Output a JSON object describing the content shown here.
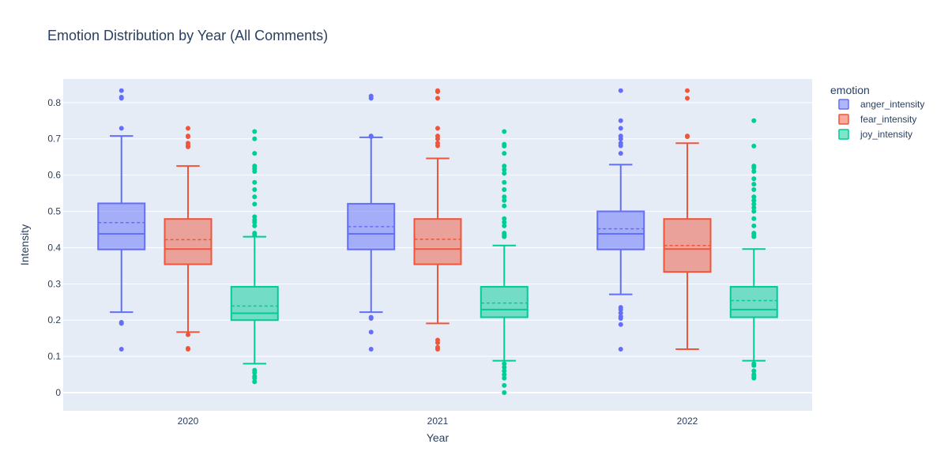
{
  "chart_data": {
    "type": "box",
    "title": "Emotion Distribution by Year (All Comments)",
    "xlabel": "Year",
    "ylabel": "Intensity",
    "ylim": [
      -0.05,
      0.865
    ],
    "yticks": [
      0,
      0.1,
      0.2,
      0.3,
      0.4,
      0.5,
      0.6,
      0.7,
      0.8
    ],
    "categories": [
      "2020",
      "2021",
      "2022"
    ],
    "legend_title": "emotion",
    "legend_position": "top-right, outside plot",
    "grid": true,
    "show_mean": true,
    "series": [
      {
        "name": "anger_intensity",
        "color": "#636efa",
        "boxes": [
          {
            "q1": 0.395,
            "median": 0.438,
            "q3": 0.522,
            "mean": 0.469,
            "lower": 0.222,
            "upper": 0.708,
            "outliers": [
              0.833,
              0.815,
              0.812,
              0.729,
              0.194,
              0.191,
              0.12
            ]
          },
          {
            "q1": 0.395,
            "median": 0.438,
            "q3": 0.521,
            "mean": 0.458,
            "lower": 0.222,
            "upper": 0.704,
            "outliers": [
              0.818,
              0.812,
              0.708,
              0.706,
              0.208,
              0.205,
              0.167,
              0.12
            ]
          },
          {
            "q1": 0.395,
            "median": 0.438,
            "q3": 0.5,
            "mean": 0.452,
            "lower": 0.271,
            "upper": 0.629,
            "outliers": [
              0.833,
              0.75,
              0.729,
              0.708,
              0.7,
              0.688,
              0.681,
              0.66,
              0.235,
              0.229,
              0.22,
              0.21,
              0.205,
              0.188,
              0.12
            ]
          }
        ]
      },
      {
        "name": "fear_intensity",
        "color": "#ef553b",
        "boxes": [
          {
            "q1": 0.354,
            "median": 0.396,
            "q3": 0.479,
            "mean": 0.422,
            "lower": 0.167,
            "upper": 0.625,
            "outliers": [
              0.729,
              0.708,
              0.706,
              0.688,
              0.681,
              0.678,
              0.16,
              0.122,
              0.12
            ]
          },
          {
            "q1": 0.354,
            "median": 0.396,
            "q3": 0.479,
            "mean": 0.423,
            "lower": 0.191,
            "upper": 0.646,
            "outliers": [
              0.833,
              0.83,
              0.812,
              0.729,
              0.708,
              0.7,
              0.688,
              0.681,
              0.145,
              0.138,
              0.125,
              0.12
            ]
          },
          {
            "q1": 0.333,
            "median": 0.396,
            "q3": 0.479,
            "mean": 0.406,
            "lower": 0.12,
            "upper": 0.688,
            "outliers": [
              0.833,
              0.812,
              0.708,
              0.706
            ]
          }
        ]
      },
      {
        "name": "joy_intensity",
        "color": "#00cc96",
        "boxes": [
          {
            "q1": 0.2,
            "median": 0.219,
            "q3": 0.292,
            "mean": 0.239,
            "lower": 0.08,
            "upper": 0.43,
            "outliers": [
              0.72,
              0.7,
              0.66,
              0.625,
              0.618,
              0.61,
              0.58,
              0.56,
              0.54,
              0.52,
              0.485,
              0.476,
              0.47,
              0.46,
              0.44,
              0.435,
              0.062,
              0.055,
              0.045,
              0.04,
              0.03
            ]
          },
          {
            "q1": 0.208,
            "median": 0.229,
            "q3": 0.292,
            "mean": 0.247,
            "lower": 0.088,
            "upper": 0.406,
            "outliers": [
              0.72,
              0.685,
              0.68,
              0.66,
              0.625,
              0.615,
              0.605,
              0.58,
              0.56,
              0.54,
              0.53,
              0.515,
              0.48,
              0.47,
              0.46,
              0.44,
              0.435,
              0.43,
              0.08,
              0.07,
              0.06,
              0.05,
              0.04,
              0.02,
              0.0
            ]
          },
          {
            "q1": 0.208,
            "median": 0.229,
            "q3": 0.292,
            "mean": 0.254,
            "lower": 0.088,
            "upper": 0.396,
            "outliers": [
              0.75,
              0.68,
              0.625,
              0.62,
              0.61,
              0.59,
              0.575,
              0.56,
              0.54,
              0.53,
              0.52,
              0.51,
              0.5,
              0.48,
              0.46,
              0.44,
              0.435,
              0.43,
              0.08,
              0.075,
              0.06,
              0.05,
              0.045,
              0.04
            ]
          }
        ]
      }
    ]
  }
}
